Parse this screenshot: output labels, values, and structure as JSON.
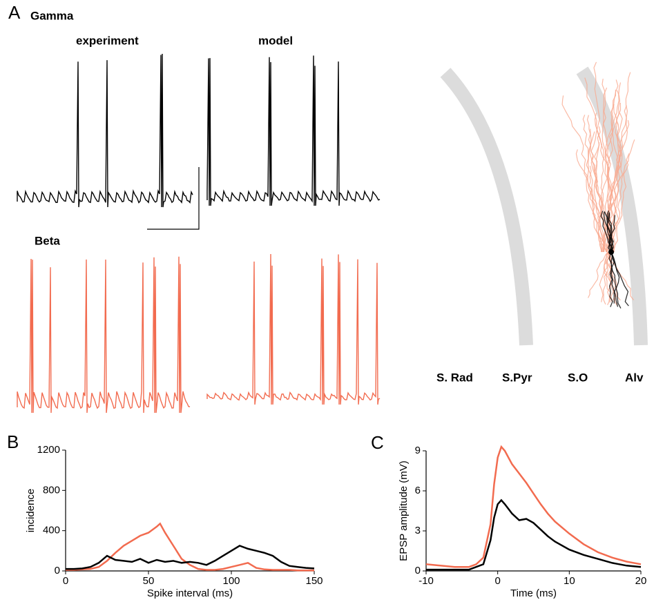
{
  "panel_a": {
    "label": "A",
    "title": "Gamma",
    "experiment": "experiment",
    "model": "model",
    "beta": "Beta",
    "layers": [
      "S. Rad",
      "S.Pyr",
      "S.O",
      "Alv"
    ]
  },
  "chart_data": [
    {
      "type": "line",
      "panel": "B",
      "ylabel": "incidence",
      "xlabel": "Spike interval (ms)",
      "xlim": [
        0,
        150
      ],
      "ylim": [
        0,
        1200
      ],
      "xticks": [
        0,
        50,
        100,
        150
      ],
      "yticks": [
        0,
        400,
        800,
        1200
      ],
      "series": [
        {
          "color": "#f26b4f",
          "x": [
            0,
            5,
            10,
            15,
            20,
            25,
            30,
            35,
            40,
            45,
            50,
            55,
            57,
            60,
            65,
            70,
            75,
            80,
            85,
            90,
            95,
            100,
            105,
            110,
            115,
            120,
            125,
            130,
            135,
            140,
            145,
            150
          ],
          "values": [
            10,
            10,
            15,
            20,
            40,
            100,
            180,
            250,
            300,
            350,
            380,
            440,
            470,
            380,
            250,
            120,
            60,
            20,
            10,
            10,
            20,
            40,
            60,
            80,
            30,
            15,
            10,
            10,
            10,
            5,
            5,
            5
          ]
        },
        {
          "color": "#000000",
          "x": [
            0,
            5,
            10,
            15,
            20,
            25,
            30,
            35,
            40,
            45,
            50,
            55,
            60,
            65,
            70,
            75,
            80,
            85,
            90,
            95,
            100,
            105,
            110,
            115,
            120,
            125,
            130,
            135,
            140,
            145,
            150
          ],
          "values": [
            20,
            20,
            25,
            40,
            80,
            150,
            110,
            100,
            90,
            120,
            80,
            110,
            90,
            100,
            80,
            90,
            80,
            60,
            100,
            150,
            200,
            250,
            220,
            200,
            180,
            150,
            90,
            50,
            40,
            30,
            25
          ]
        }
      ]
    },
    {
      "type": "line",
      "panel": "C",
      "ylabel": "EPSP amplitude (mV)",
      "xlabel": "Time (ms)",
      "xlim": [
        -10,
        20
      ],
      "ylim": [
        0,
        9
      ],
      "xticks": [
        -10,
        0,
        10,
        20
      ],
      "yticks": [
        0,
        3,
        6,
        9
      ],
      "series": [
        {
          "color": "#f26b4f",
          "x": [
            -10,
            -8,
            -6,
            -4,
            -3,
            -2,
            -1,
            -0.5,
            0,
            0.5,
            1,
            2,
            3,
            4,
            5,
            6,
            7,
            8,
            10,
            12,
            14,
            16,
            18,
            20
          ],
          "values": [
            0.5,
            0.4,
            0.3,
            0.3,
            0.5,
            1.0,
            3.5,
            6.5,
            8.5,
            9.3,
            9,
            8,
            7.3,
            6.6,
            5.8,
            5,
            4.3,
            3.7,
            2.8,
            2,
            1.4,
            1,
            0.7,
            0.5
          ]
        },
        {
          "color": "#000000",
          "x": [
            -10,
            -6,
            -4,
            -2,
            -1,
            -0.5,
            0,
            0.5,
            1,
            2,
            3,
            4,
            5,
            6,
            7,
            8,
            10,
            12,
            14,
            16,
            18,
            20
          ],
          "values": [
            0.1,
            0.1,
            0.1,
            0.5,
            2.3,
            4,
            5,
            5.3,
            5,
            4.3,
            3.8,
            3.9,
            3.6,
            3.1,
            2.6,
            2.2,
            1.6,
            1.2,
            0.9,
            0.6,
            0.4,
            0.3
          ]
        }
      ]
    }
  ]
}
